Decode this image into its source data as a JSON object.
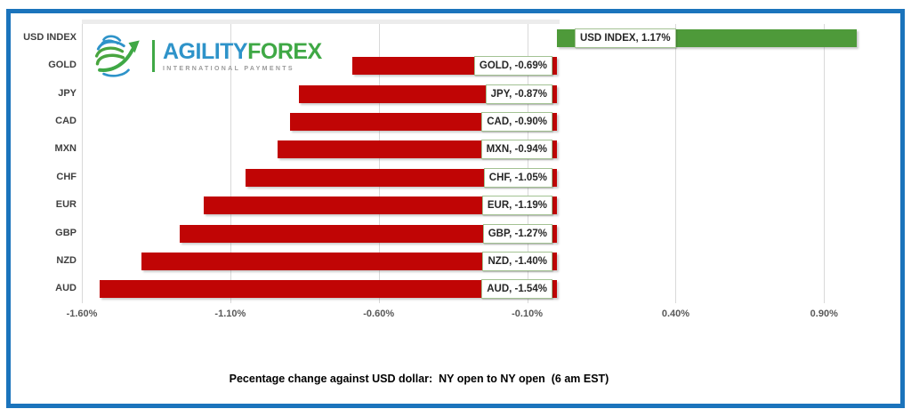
{
  "frame": {
    "border_color": "#1B74BC"
  },
  "logo": {
    "primary": "AGILITY",
    "secondary": "FOREX",
    "tagline": "INTERNATIONAL PAYMENTS",
    "primary_color": "#2E93C9",
    "secondary_color": "#3FA845",
    "tagline_color": "#9B9B9B"
  },
  "chart_data": {
    "type": "bar",
    "orientation": "horizontal",
    "title": "Pecentage change against USD dollar:  NY open to NY open  (6 am EST)",
    "categories": [
      "USD INDEX",
      "GOLD",
      "JPY",
      "CAD",
      "MXN",
      "CHF",
      "EUR",
      "GBP",
      "NZD",
      "AUD"
    ],
    "values": [
      1.17,
      -0.69,
      -0.87,
      -0.9,
      -0.94,
      -1.05,
      -1.19,
      -1.27,
      -1.4,
      -1.54
    ],
    "data_labels": [
      "USD INDEX, 1.17%",
      "GOLD, -0.69%",
      "JPY, -0.87%",
      "CAD, -0.90%",
      "MXN, -0.94%",
      "CHF, -1.05%",
      "EUR, -1.19%",
      "GBP, -1.27%",
      "NZD, -1.40%",
      "AUD, -1.54%"
    ],
    "x_tick_labels": [
      "-1.60%",
      "-1.10%",
      "-0.60%",
      "-0.10%",
      "0.40%",
      "0.90%"
    ],
    "x_tick_values": [
      -1.6,
      -1.1,
      -0.6,
      -0.1,
      0.4,
      0.9
    ],
    "xlim": [
      -1.6,
      1.01
    ],
    "grid": true,
    "legend": false,
    "positive_color": "#4E9A3A",
    "negative_color": "#C00505",
    "gridline_color": "#D9D9D9",
    "label_box": {
      "border_color": "#A3C293",
      "background": "#FFFFFF",
      "text_color": "#262626"
    }
  }
}
